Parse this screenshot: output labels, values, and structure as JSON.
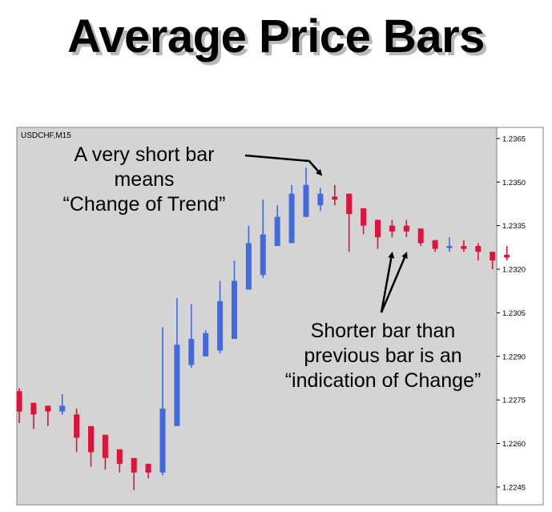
{
  "slide": {
    "title": "Average Price Bars"
  },
  "chart_data": {
    "type": "candlestick",
    "symbol_label": "USDCHF,M15",
    "ylim": [
      1.224,
      1.2368
    ],
    "y_ticks": [
      "1.2365",
      "1.2350",
      "1.2335",
      "1.2320",
      "1.2305",
      "1.2290",
      "1.2275",
      "1.2260",
      "1.2245"
    ],
    "grid": false,
    "colors": {
      "up": "#4169e1",
      "down": "#dc143c",
      "background": "#d4d4d4",
      "axis_bg": "#ffffff"
    },
    "candles": [
      {
        "o": 1.2278,
        "h": 1.2279,
        "l": 1.2267,
        "c": 1.2271
      },
      {
        "o": 1.2274,
        "h": 1.2274,
        "l": 1.2265,
        "c": 1.227
      },
      {
        "o": 1.2273,
        "h": 1.2273,
        "l": 1.2266,
        "c": 1.2271
      },
      {
        "o": 1.2271,
        "h": 1.2277,
        "l": 1.227,
        "c": 1.2273
      },
      {
        "o": 1.227,
        "h": 1.2272,
        "l": 1.2257,
        "c": 1.2262
      },
      {
        "o": 1.2266,
        "h": 1.2266,
        "l": 1.2252,
        "c": 1.2257
      },
      {
        "o": 1.2263,
        "h": 1.2263,
        "l": 1.2251,
        "c": 1.2255
      },
      {
        "o": 1.2258,
        "h": 1.2258,
        "l": 1.225,
        "c": 1.2253
      },
      {
        "o": 1.2255,
        "h": 1.2255,
        "l": 1.2244,
        "c": 1.225
      },
      {
        "o": 1.2253,
        "h": 1.2253,
        "l": 1.2248,
        "c": 1.225
      },
      {
        "o": 1.225,
        "h": 1.23,
        "l": 1.2249,
        "c": 1.2272
      },
      {
        "o": 1.2266,
        "h": 1.231,
        "l": 1.2266,
        "c": 1.2294
      },
      {
        "o": 1.2287,
        "h": 1.2308,
        "l": 1.2286,
        "c": 1.2296
      },
      {
        "o": 1.229,
        "h": 1.2299,
        "l": 1.229,
        "c": 1.2298
      },
      {
        "o": 1.2292,
        "h": 1.2316,
        "l": 1.2291,
        "c": 1.2309
      },
      {
        "o": 1.2296,
        "h": 1.2323,
        "l": 1.2296,
        "c": 1.2316
      },
      {
        "o": 1.2313,
        "h": 1.2335,
        "l": 1.2313,
        "c": 1.2329
      },
      {
        "o": 1.2318,
        "h": 1.2344,
        "l": 1.2317,
        "c": 1.2332
      },
      {
        "o": 1.2328,
        "h": 1.2342,
        "l": 1.2328,
        "c": 1.2338
      },
      {
        "o": 1.2329,
        "h": 1.2349,
        "l": 1.2329,
        "c": 1.2346
      },
      {
        "o": 1.2338,
        "h": 1.2355,
        "l": 1.2338,
        "c": 1.2349
      },
      {
        "o": 1.2342,
        "h": 1.2348,
        "l": 1.234,
        "c": 1.2346
      },
      {
        "o": 1.2345,
        "h": 1.2349,
        "l": 1.2342,
        "c": 1.2344
      },
      {
        "o": 1.2346,
        "h": 1.2346,
        "l": 1.2326,
        "c": 1.2339
      },
      {
        "o": 1.2341,
        "h": 1.2341,
        "l": 1.2332,
        "c": 1.2335
      },
      {
        "o": 1.2337,
        "h": 1.2337,
        "l": 1.2327,
        "c": 1.2331
      },
      {
        "o": 1.2335,
        "h": 1.2337,
        "l": 1.2331,
        "c": 1.2333
      },
      {
        "o": 1.2335,
        "h": 1.2337,
        "l": 1.2331,
        "c": 1.2333
      },
      {
        "o": 1.2334,
        "h": 1.2334,
        "l": 1.2328,
        "c": 1.2329
      },
      {
        "o": 1.233,
        "h": 1.233,
        "l": 1.2326,
        "c": 1.2327
      },
      {
        "o": 1.2328,
        "h": 1.2331,
        "l": 1.2326,
        "c": 1.2328
      },
      {
        "o": 1.2328,
        "h": 1.233,
        "l": 1.2326,
        "c": 1.2327
      },
      {
        "o": 1.2328,
        "h": 1.2329,
        "l": 1.2323,
        "c": 1.2326
      },
      {
        "o": 1.2326,
        "h": 1.2326,
        "l": 1.232,
        "c": 1.2323
      },
      {
        "o": 1.2325,
        "h": 1.2328,
        "l": 1.2323,
        "c": 1.2324
      }
    ],
    "annotations": [
      {
        "lines": [
          "A very short bar",
          "means",
          "“Change of Trend”"
        ],
        "points_to_candle": 21
      },
      {
        "lines": [
          "Shorter bar than",
          "previous bar is an",
          "“indication of Change”"
        ],
        "points_to_candles": [
          26,
          27
        ]
      }
    ]
  }
}
